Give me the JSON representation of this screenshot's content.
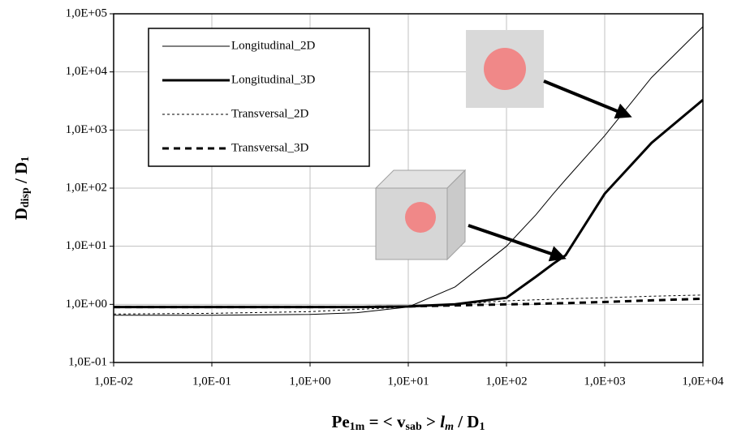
{
  "chart_data": {
    "type": "line",
    "ylabel": [
      "D",
      "disp",
      " / D",
      "1"
    ],
    "xlabel": [
      "Pe",
      "1m",
      " = < v",
      "sab",
      " > ",
      "l",
      "m",
      " / D",
      "1"
    ],
    "x": [
      0.01,
      0.1,
      1,
      3,
      10,
      30,
      100,
      200,
      300,
      400,
      1000,
      3000,
      10000
    ],
    "series": [
      {
        "name": "Longitudinal_2D",
        "color": "#000000",
        "width": 1,
        "dash": "none",
        "values": [
          0.65,
          0.65,
          0.67,
          0.72,
          0.9,
          2,
          10,
          35,
          80,
          140,
          800,
          8000,
          60000
        ]
      },
      {
        "name": "Longitudinal_3D",
        "color": "#000000",
        "width": 3,
        "dash": "none",
        "values": [
          0.9,
          0.9,
          0.9,
          0.9,
          0.92,
          1.0,
          1.3,
          3,
          5,
          7,
          80,
          600,
          3300
        ]
      },
      {
        "name": "Transversal_2D",
        "color": "#000000",
        "width": 1,
        "dash": "3 3",
        "values": [
          0.68,
          0.7,
          0.75,
          0.82,
          0.9,
          1.0,
          1.15,
          1.2,
          1.22,
          1.25,
          1.3,
          1.38,
          1.45
        ]
      },
      {
        "name": "Transversal_3D",
        "color": "#000000",
        "width": 3,
        "dash": "8 6",
        "values": [
          0.9,
          0.9,
          0.9,
          0.9,
          0.92,
          0.96,
          1.0,
          1.02,
          1.04,
          1.05,
          1.1,
          1.17,
          1.25
        ]
      }
    ],
    "log_x": true,
    "log_y": true,
    "grid": true,
    "xlim": [
      0.01,
      10000
    ],
    "ylim": [
      0.1,
      100000
    ],
    "xticks": [
      {
        "value": 0.01,
        "label": "1,0E-02"
      },
      {
        "value": 0.1,
        "label": "1,0E-01"
      },
      {
        "value": 1,
        "label": "1,0E+00"
      },
      {
        "value": 10,
        "label": "1,0E+01"
      },
      {
        "value": 100,
        "label": "1,0E+02"
      },
      {
        "value": 1000,
        "label": "1,0E+03"
      },
      {
        "value": 10000,
        "label": "1,0E+04"
      }
    ],
    "yticks": [
      {
        "value": 0.1,
        "label": "1,0E-01"
      },
      {
        "value": 1,
        "label": "1,0E+00"
      },
      {
        "value": 10,
        "label": "1,0E+01"
      },
      {
        "value": 100,
        "label": "1,0E+02"
      },
      {
        "value": 1000,
        "label": "1,0E+03"
      },
      {
        "value": 10000,
        "label": "1,0E+04"
      },
      {
        "value": 100000,
        "label": "1,0E+05"
      }
    ]
  }
}
